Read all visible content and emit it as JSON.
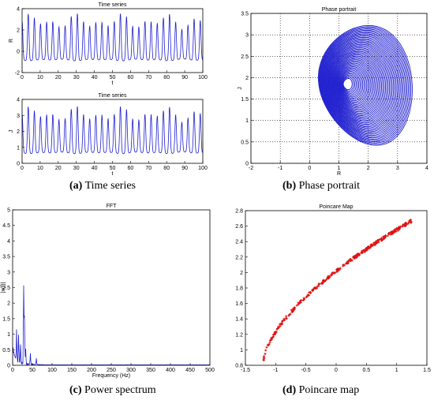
{
  "captions": {
    "a": {
      "letter": "(a)",
      "text": "Time series"
    },
    "b": {
      "letter": "(b)",
      "text": "Phase portrait"
    },
    "c": {
      "letter": "(c)",
      "text": "Power spectrum"
    },
    "d": {
      "letter": "(d)",
      "text": "Poincare map"
    }
  },
  "colors": {
    "trace": "#1f1fd0",
    "poincare": "#e01010",
    "axes": "#000000"
  },
  "chart_data": [
    {
      "id": "ts_R",
      "type": "line",
      "title": "Time series",
      "xlabel": "t",
      "ylabel": "R",
      "xlim": [
        0,
        100
      ],
      "ylim": [
        -2,
        4
      ],
      "xticks": [
        0,
        10,
        20,
        30,
        40,
        50,
        60,
        70,
        80,
        90,
        100
      ],
      "yticks": [
        -2,
        0,
        2,
        4
      ],
      "series": [
        {
          "period": 3.4,
          "min": -0.9,
          "max": 3.6,
          "samples_per_unit": 12
        }
      ]
    },
    {
      "id": "ts_J",
      "type": "line",
      "title": "Time series",
      "xlabel": "t",
      "ylabel": "J",
      "xlim": [
        0,
        100
      ],
      "ylim": [
        0,
        4
      ],
      "xticks": [
        0,
        10,
        20,
        30,
        40,
        50,
        60,
        70,
        80,
        90,
        100
      ],
      "yticks": [
        0,
        1,
        2,
        3,
        4
      ],
      "series": [
        {
          "period": 3.4,
          "min": 0.6,
          "max": 3.6,
          "samples_per_unit": 12
        }
      ]
    },
    {
      "id": "phase",
      "type": "line",
      "title": "Phase portrait",
      "xlabel": "R",
      "ylabel": "J",
      "xlim": [
        -2,
        4
      ],
      "ylim": [
        0,
        3.5
      ],
      "xticks": [
        -2,
        -1,
        0,
        1,
        2,
        3,
        4
      ],
      "yticks": [
        0,
        0.5,
        1,
        1.5,
        2,
        2.5,
        3,
        3.5
      ],
      "grid": true,
      "series": [
        {
          "center": [
            1.3,
            1.85
          ],
          "loop_count": 46,
          "radius_min": 0.15,
          "radius_max": 1.6
        }
      ]
    },
    {
      "id": "fft",
      "type": "line",
      "title": "FFT",
      "xlabel": "Frequency (Hz)",
      "ylabel": "|x(f)|",
      "xlim": [
        0,
        500
      ],
      "ylim": [
        0,
        5
      ],
      "xticks": [
        0,
        50,
        100,
        150,
        200,
        250,
        300,
        350,
        400,
        450,
        500
      ],
      "yticks": [
        0,
        0.5,
        1,
        1.5,
        2,
        2.5,
        3,
        3.5,
        4,
        4.5,
        5
      ],
      "series": [
        {
          "peaks": [
            [
              10,
              0.95
            ],
            [
              15,
              0.9
            ],
            [
              20,
              0.6
            ],
            [
              28,
              2.5
            ],
            [
              30,
              1.5
            ],
            [
              33,
              0.5
            ],
            [
              45,
              0.35
            ],
            [
              60,
              0.2
            ]
          ]
        }
      ]
    },
    {
      "id": "poincare",
      "type": "scatter",
      "title": "Poincare Map",
      "xlabel": "",
      "ylabel": "",
      "xlim": [
        -1.5,
        1.5
      ],
      "ylim": [
        0.8,
        2.8
      ],
      "xticks": [
        -1.5,
        -1,
        -0.5,
        0,
        0.5,
        1,
        1.5
      ],
      "yticks": [
        0.8,
        1,
        1.2,
        1.4,
        1.6,
        1.8,
        2,
        2.2,
        2.4,
        2.6,
        2.8
      ],
      "series": [
        {
          "x_start": -1.2,
          "x_end": 1.25,
          "y_start": 0.85,
          "y_end": 2.67,
          "count": 320
        }
      ]
    }
  ]
}
